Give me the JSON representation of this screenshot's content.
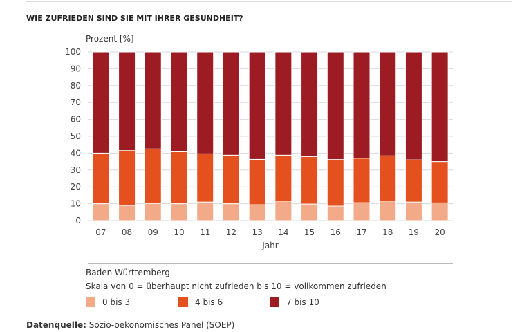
{
  "title": "WIE ZUFRIEDEN SIND SIE MIT IHRER GESUNDHEIT?",
  "chart_data": {
    "type": "bar",
    "stacked": true,
    "ylabel": "Prozent [%]",
    "xlabel": "Jahr",
    "ylim": [
      0,
      100
    ],
    "yticks": [
      0,
      10,
      20,
      30,
      40,
      50,
      60,
      70,
      80,
      90,
      100
    ],
    "grid": true,
    "categories": [
      "07",
      "08",
      "09",
      "10",
      "11",
      "12",
      "13",
      "14",
      "15",
      "16",
      "17",
      "18",
      "19",
      "20"
    ],
    "series": [
      {
        "name": "0 bis 3",
        "color": "#f2aa88",
        "values": [
          10.0,
          9.0,
          10.2,
          10.0,
          11.0,
          10.0,
          9.4,
          11.6,
          9.8,
          8.6,
          10.6,
          11.6,
          11.0,
          10.5
        ]
      },
      {
        "name": "4 bis 6",
        "color": "#e4501e",
        "values": [
          30.0,
          32.5,
          32.3,
          30.8,
          28.6,
          28.8,
          26.9,
          27.2,
          28.2,
          27.6,
          26.4,
          26.8,
          25.0,
          24.5
        ]
      },
      {
        "name": "7 bis 10",
        "color": "#9d1c23",
        "values": [
          60.0,
          58.5,
          57.5,
          59.2,
          60.4,
          61.2,
          63.7,
          61.2,
          62.0,
          63.8,
          63.0,
          61.6,
          64.0,
          65.0
        ]
      }
    ],
    "legend_position": "bottom"
  },
  "legend": {
    "region": "Baden-Württemberg",
    "scale_note": "Skala von 0 = überhaupt nicht zufrieden bis 10 = vollkommen zufrieden"
  },
  "source": {
    "label": "Datenquelle:",
    "text": " Sozio-oekonomisches Panel (SOEP)"
  }
}
